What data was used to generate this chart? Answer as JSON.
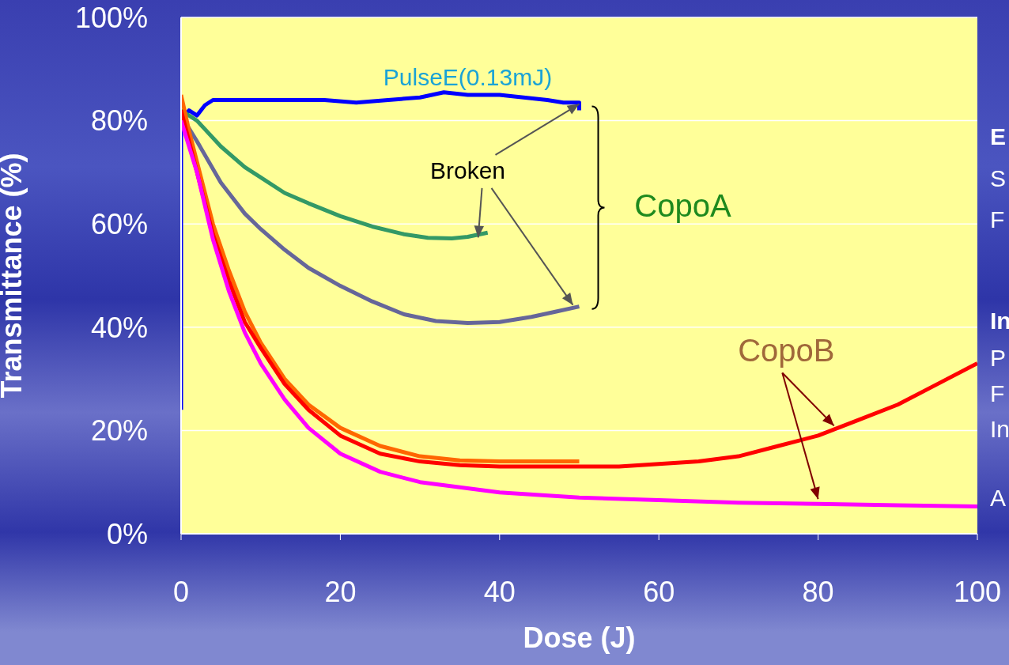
{
  "chart_data": {
    "type": "line",
    "xlabel": "Dose (J)",
    "ylabel": "Transmittance (%)",
    "xlim": [
      0,
      100
    ],
    "xticks": [
      0,
      20,
      40,
      60,
      80,
      100
    ],
    "ylim": [
      0,
      100
    ],
    "yticks": [
      {
        "value": 0,
        "label": "0%"
      },
      {
        "value": 20,
        "label": "20%"
      },
      {
        "value": 40,
        "label": "40%"
      },
      {
        "value": 60,
        "label": "60%"
      },
      {
        "value": 80,
        "label": "80%"
      },
      {
        "value": 100,
        "label": "100%"
      }
    ],
    "grid": "y",
    "legend": false,
    "marker": "none",
    "line_style": "solid",
    "series": [
      {
        "color": "#0000ff",
        "x": [
          0,
          0,
          1,
          2,
          3,
          4,
          6,
          10,
          14,
          18,
          22,
          26,
          30,
          33,
          36,
          40,
          43,
          46,
          48,
          50,
          50
        ],
        "values": [
          24,
          80,
          82,
          81,
          83,
          84,
          84,
          84,
          84,
          84,
          83.5,
          84,
          84.5,
          85.5,
          85,
          85,
          84.5,
          84,
          83.5,
          83.5,
          82
        ]
      },
      {
        "color": "#339966",
        "x": [
          0,
          2,
          5,
          8,
          10,
          13,
          16,
          20,
          24,
          28,
          31,
          34,
          36,
          38.5
        ],
        "values": [
          82,
          80,
          75,
          71,
          69,
          66,
          64,
          61.5,
          59.5,
          58,
          57.3,
          57.2,
          57.5,
          58.3
        ]
      },
      {
        "color": "#666699",
        "x": [
          0,
          2,
          5,
          8,
          10,
          13,
          16,
          20,
          24,
          28,
          32,
          36,
          40,
          44,
          47,
          50
        ],
        "values": [
          81,
          76,
          68,
          62,
          59,
          55,
          51.5,
          48,
          45,
          42.5,
          41.2,
          40.8,
          41,
          42,
          43,
          44
        ]
      },
      {
        "color": "#ff6600",
        "x": [
          0,
          1,
          2,
          4,
          6,
          8,
          10,
          13,
          16,
          20,
          25,
          30,
          35,
          40,
          45,
          50
        ],
        "values": [
          85,
          78,
          72,
          60,
          51,
          43,
          37,
          30,
          25,
          20.5,
          17,
          15,
          14.2,
          14,
          14,
          14
        ]
      },
      {
        "color": "#ff0000",
        "x": [
          0,
          1,
          2,
          4,
          6,
          8,
          10,
          13,
          16,
          20,
          25,
          30,
          35,
          40,
          45,
          50,
          55,
          60,
          65,
          70,
          75,
          80,
          85,
          90,
          95,
          100
        ],
        "values": [
          82,
          76,
          70,
          58,
          49,
          41,
          36,
          29,
          24,
          19,
          15.5,
          14,
          13.3,
          13,
          13,
          13,
          13,
          13.5,
          14,
          15,
          17,
          19,
          22,
          25,
          29,
          33
        ]
      },
      {
        "color": "#ff00ff",
        "x": [
          0,
          1,
          2,
          4,
          6,
          8,
          10,
          13,
          16,
          20,
          25,
          30,
          35,
          40,
          50,
          60,
          70,
          80,
          90,
          100
        ],
        "values": [
          80,
          75,
          70,
          57,
          47,
          39,
          33,
          26,
          20.5,
          15.5,
          12,
          10,
          9,
          8,
          7,
          6.5,
          6,
          5.8,
          5.5,
          5.3
        ]
      }
    ],
    "annotations": [
      "PulseE(0.13mJ)",
      {
        "text": "Broken",
        "x": 50,
        "y": 82
      },
      "CopoA",
      {
        "text": "CopoB",
        "x": 82,
        "y": 20
      },
      "E",
      "S",
      "F",
      "In",
      "P",
      "F",
      "In",
      "A"
    ]
  }
}
